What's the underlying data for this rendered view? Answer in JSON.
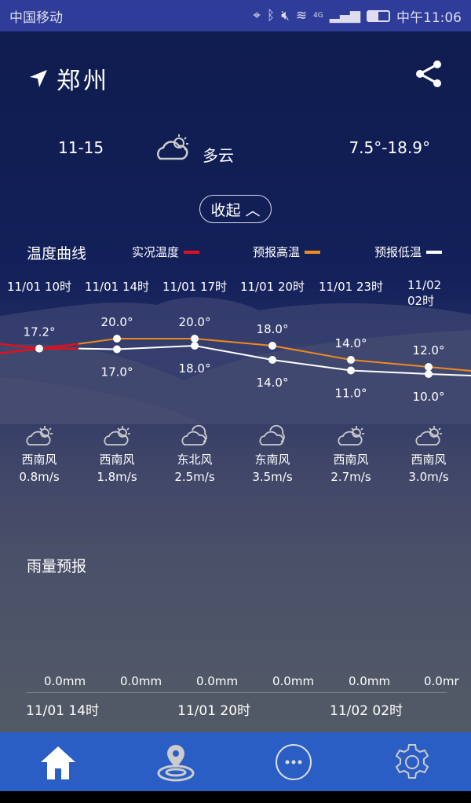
{
  "status": {
    "carrier": "中国移动",
    "time": "中午11:06",
    "network": "4G"
  },
  "header": {
    "city": "郑州",
    "share_icon": "share-icon"
  },
  "forecast_rows": [
    {
      "date": "",
      "weather": "多云",
      "temp": ""
    },
    {
      "date": "11-15",
      "weather": "多云",
      "temp": "7.5°-18.9°"
    }
  ],
  "collapse_label": "收起 ︿",
  "temp_curve": {
    "title": "温度曲线",
    "legend": [
      {
        "label": "实况温度",
        "color": "#e0101c"
      },
      {
        "label": "预报高温",
        "color": "#f08a1c"
      },
      {
        "label": "预报低温",
        "color": "#ffffff"
      }
    ]
  },
  "chart_data": {
    "type": "line",
    "categories": [
      "11/01 10时",
      "11/01 14时",
      "11/01 17时",
      "11/01 20时",
      "11/01 23时",
      "11/02 02时"
    ],
    "series": [
      {
        "name": "实况温度",
        "values": [
          17.2,
          null,
          null,
          null,
          null,
          null
        ]
      },
      {
        "name": "预报高温",
        "values": [
          null,
          20.0,
          20.0,
          18.0,
          14.0,
          12.0
        ]
      },
      {
        "name": "预报低温",
        "values": [
          null,
          17.0,
          18.0,
          14.0,
          11.0,
          10.0
        ]
      }
    ],
    "high_labels": [
      "17.2°",
      "20.0°",
      "20.0°",
      "18.0°",
      "14.0°",
      "12.0°"
    ],
    "low_labels": [
      "",
      "17.0°",
      "18.0°",
      "14.0°",
      "11.0°",
      "10.0°"
    ]
  },
  "hourly": [
    {
      "icon": "partly-cloudy",
      "wind": "西南风",
      "speed": "0.8m/s"
    },
    {
      "icon": "partly-cloudy",
      "wind": "西南风",
      "speed": "1.8m/s"
    },
    {
      "icon": "cloudy",
      "wind": "东北风",
      "speed": "2.5m/s"
    },
    {
      "icon": "cloudy",
      "wind": "东南风",
      "speed": "3.5m/s"
    },
    {
      "icon": "partly-cloudy",
      "wind": "西南风",
      "speed": "2.7m/s"
    },
    {
      "icon": "partly-cloudy",
      "wind": "西南风",
      "speed": "3.0m/s"
    }
  ],
  "rain": {
    "title": "雨量预报",
    "values": [
      "0.0mm",
      "0.0mm",
      "0.0mm",
      "0.0mm",
      "0.0mm",
      "0.0mr"
    ],
    "dates": [
      "11/01 14时",
      "11/01 20时",
      "11/02 02时"
    ]
  },
  "nav": [
    "home-icon",
    "location-icon",
    "more-icon",
    "settings-icon"
  ]
}
